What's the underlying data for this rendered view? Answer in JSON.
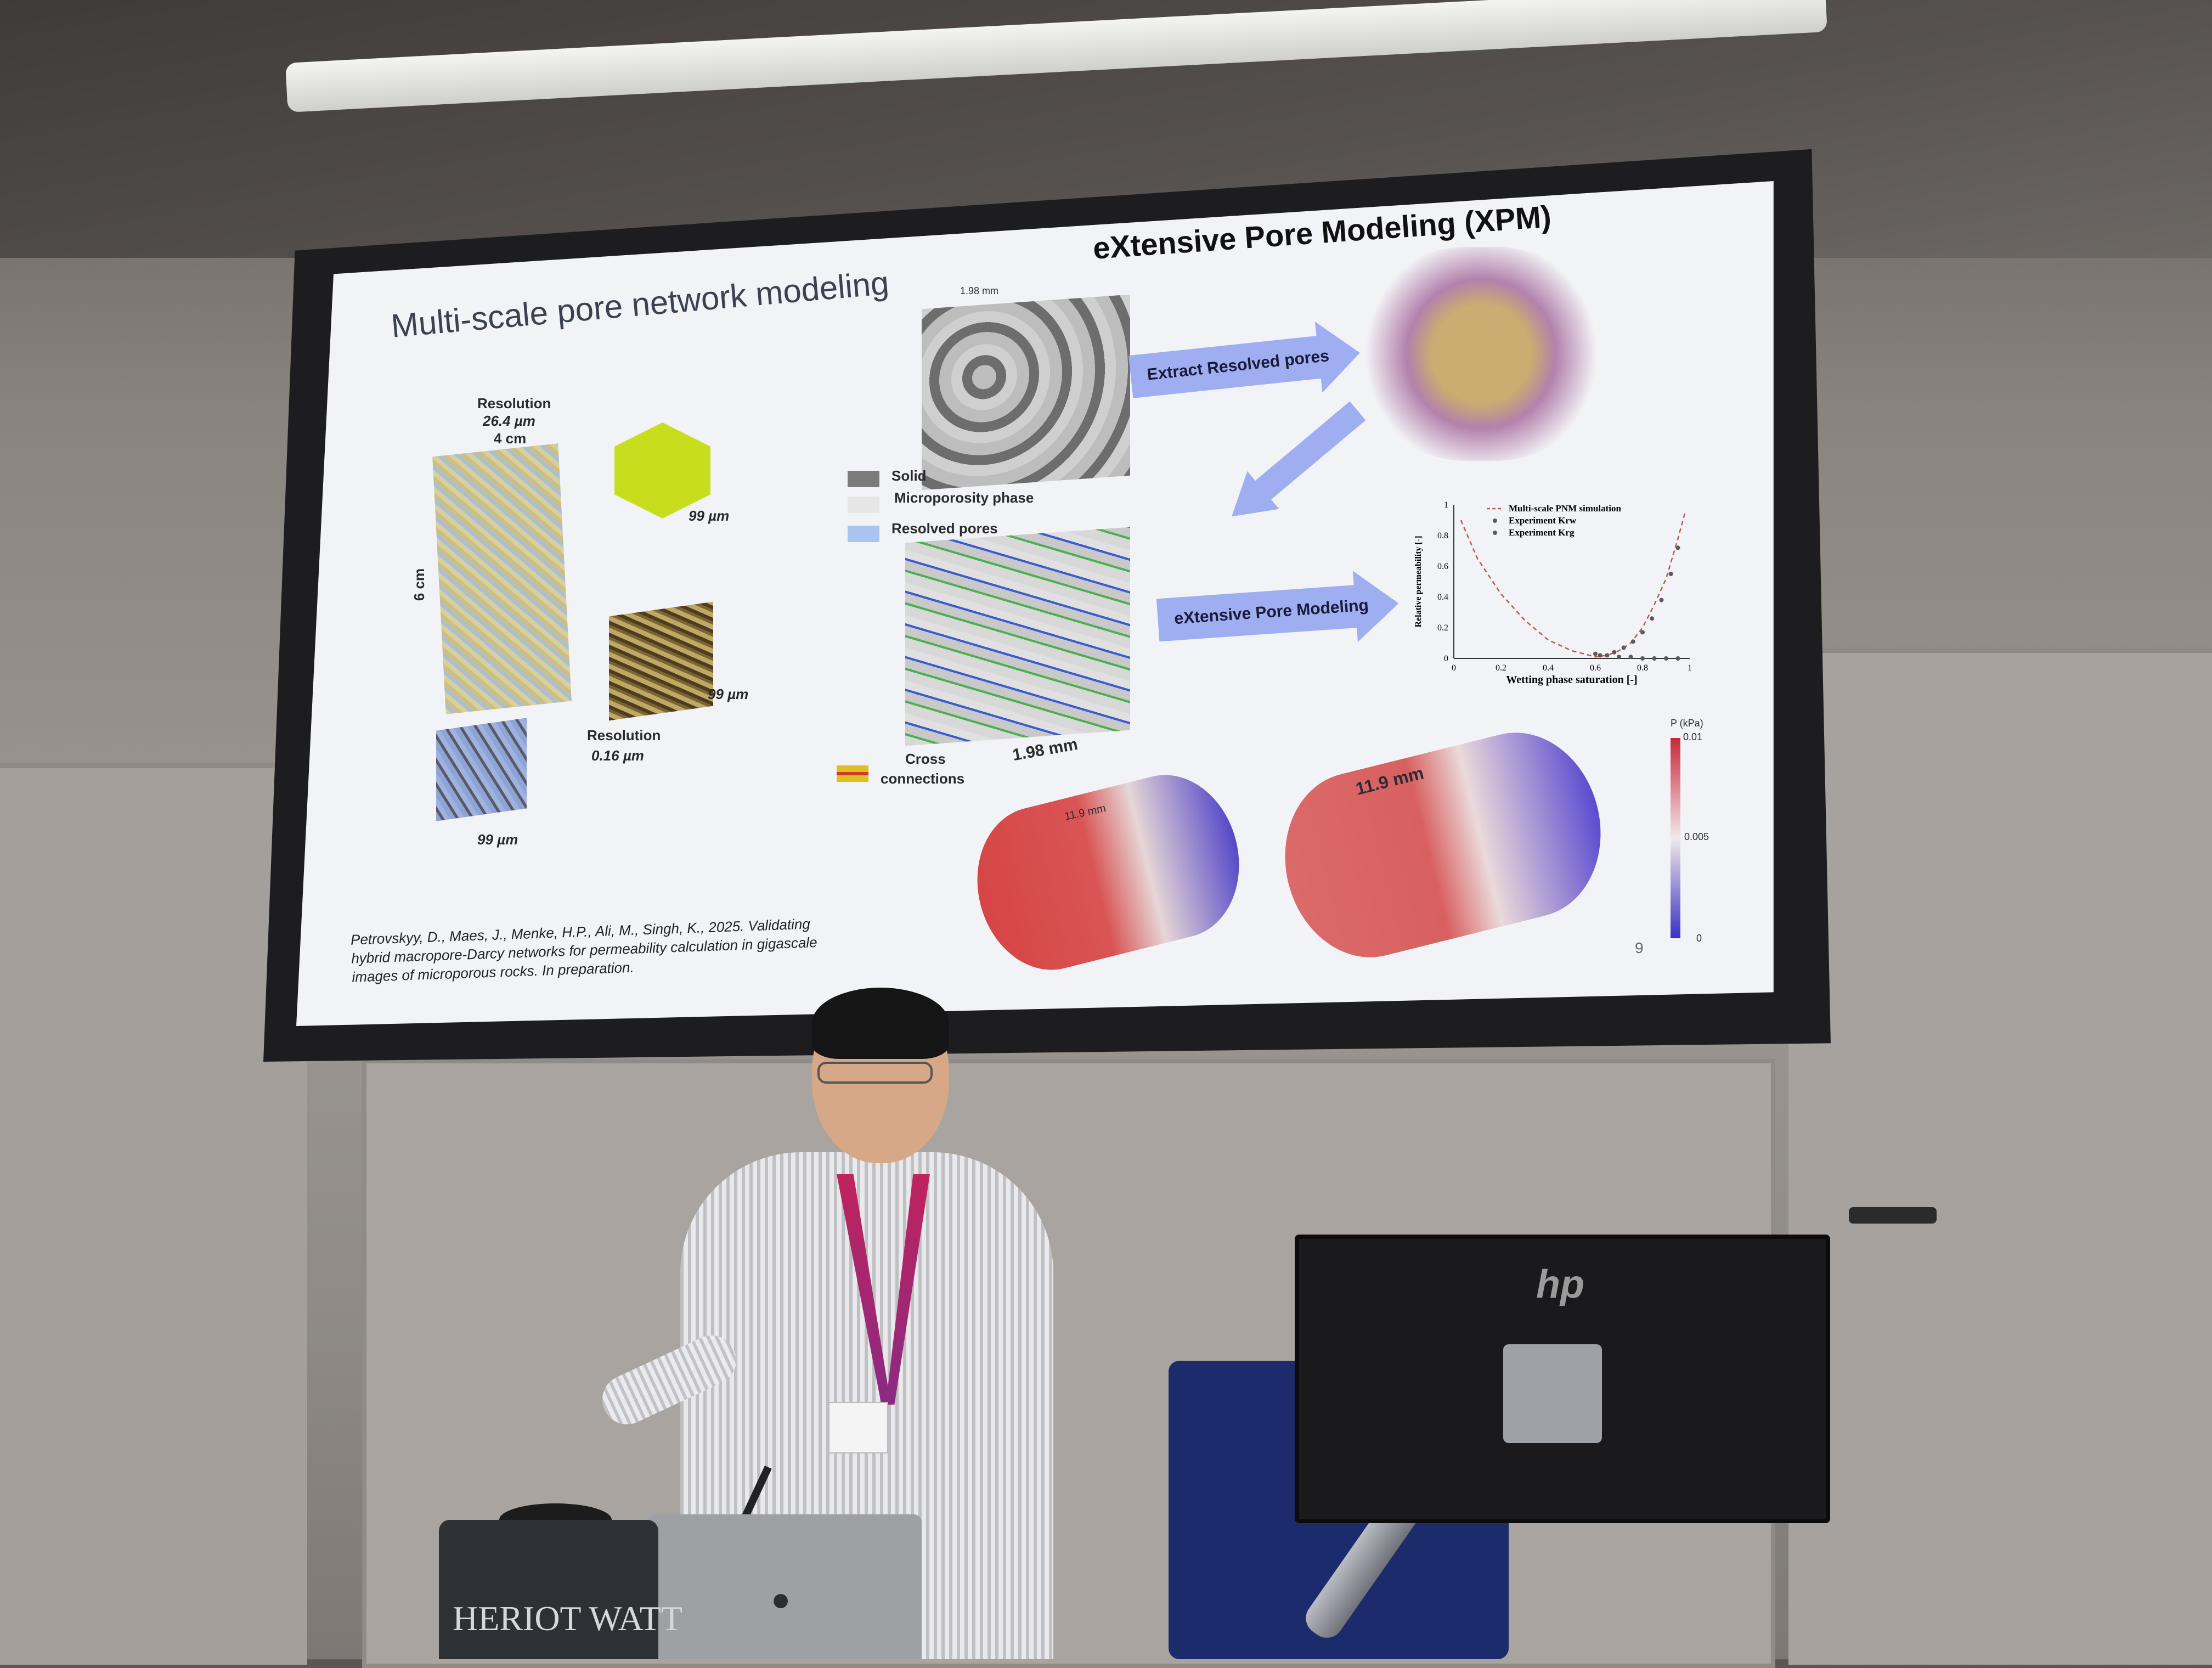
{
  "slide": {
    "title": "Multi-scale pore network modeling",
    "xpm_title": "eXtensive Pore Modeling (XPM)",
    "core": {
      "resolution_label": "Resolution",
      "resolution_value": "26.4 µm",
      "width": "4 cm",
      "height": "6 cm"
    },
    "scale_labels": [
      "99 µm",
      "99 µm",
      "99 µm"
    ],
    "fine_resolution_label": "Resolution",
    "fine_resolution_value": "0.16 µm",
    "cube_top_dim": "1.98 mm",
    "legend": {
      "solid": "Solid",
      "microporosity": "Microporosity phase",
      "resolved": "Resolved pores",
      "cross": "Cross",
      "connections": "connections",
      "colors": {
        "solid": "#7b7b7b",
        "microporosity": "#e6e6e6",
        "resolved": "#a9c4f0",
        "cross": "#e0c020"
      }
    },
    "cube_bottom_dim": "1.98 mm",
    "arrow_extract": "Extract Resolved pores",
    "arrow_xpm": "eXtensive Pore Modeling",
    "cyl_left_dim": "11.9 mm",
    "cyl_right_dim": "11.9 mm",
    "colorbar": {
      "title": "P (kPa)",
      "ticks": [
        "0.01",
        "0.005",
        "0"
      ]
    },
    "citation": "Petrovskyy, D., Maes, J., Menke, H.P., Ali, M., Singh, K., 2025. Validating hybrid macropore-Darcy networks for permeability calculation in gigascale images of microporous rocks. In preparation.",
    "page_number": "9"
  },
  "chart_data": {
    "type": "scatter",
    "xlabel": "Wetting phase saturation [-]",
    "ylabel": "Relative permeability [-]",
    "xlim": [
      0,
      1
    ],
    "ylim": [
      0,
      1
    ],
    "xticks": [
      "0",
      "0.2",
      "0.4",
      "0.6",
      "0.8",
      "1"
    ],
    "yticks": [
      "0",
      "0.2",
      "0.4",
      "0.6",
      "0.8",
      "1"
    ],
    "series": [
      {
        "name": "Multi-scale PNM simulation",
        "style": "dashed",
        "x": [
          0.03,
          0.1,
          0.2,
          0.3,
          0.4,
          0.5,
          0.6,
          0.65,
          0.7,
          0.75,
          0.8,
          0.85,
          0.9,
          0.95,
          0.98
        ],
        "y": [
          0.9,
          0.65,
          0.42,
          0.25,
          0.12,
          0.05,
          0.01,
          0.02,
          0.05,
          0.1,
          0.2,
          0.35,
          0.52,
          0.78,
          0.95
        ]
      },
      {
        "name": "Experiment Krw",
        "x": [
          0.62,
          0.68,
          0.72,
          0.76,
          0.8,
          0.84,
          0.88,
          0.92,
          0.95
        ],
        "y": [
          0.02,
          0.04,
          0.07,
          0.11,
          0.17,
          0.26,
          0.38,
          0.55,
          0.72
        ]
      },
      {
        "name": "Experiment Krg",
        "x": [
          0.6,
          0.65,
          0.7,
          0.75,
          0.8,
          0.85,
          0.9,
          0.95
        ],
        "y": [
          0.03,
          0.02,
          0.01,
          0.01,
          0.0,
          0.0,
          0.0,
          0.0
        ]
      }
    ]
  },
  "props": {
    "podium_text": "HERIOT WATT",
    "monitor_brand": "hp"
  }
}
